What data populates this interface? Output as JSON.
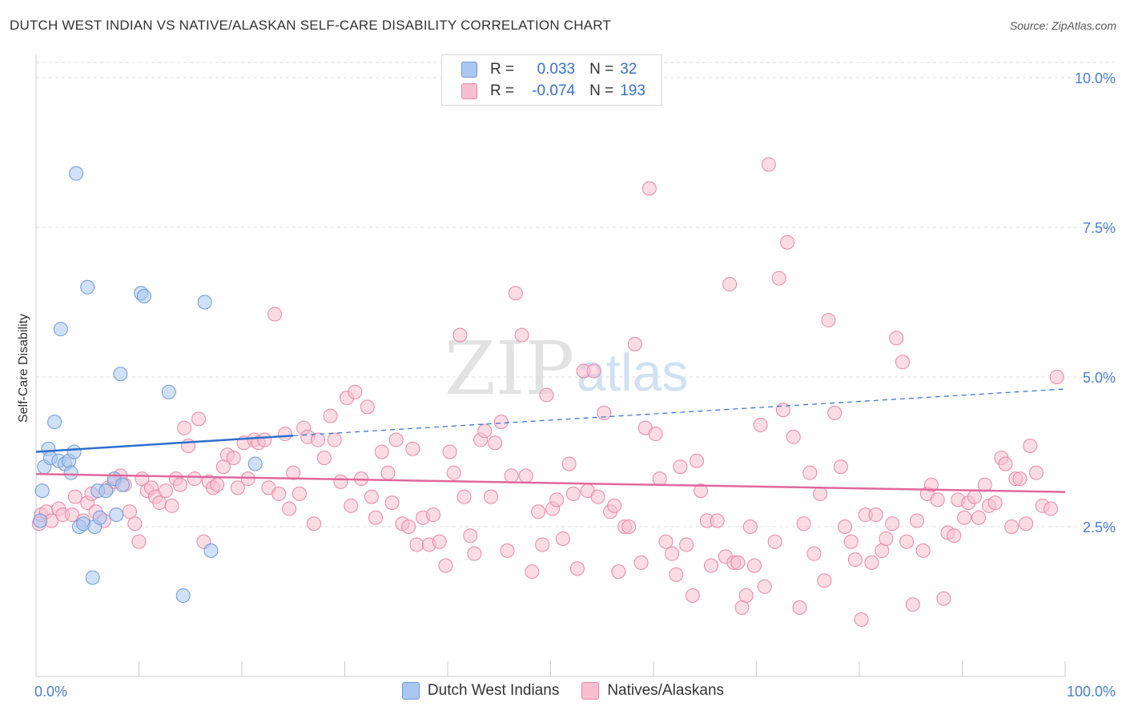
{
  "title": "DUTCH WEST INDIAN VS NATIVE/ALASKAN SELF-CARE DISABILITY CORRELATION CHART",
  "source": "Source: ZipAtlas.com",
  "watermark": {
    "zip": "ZIP",
    "atlas": "atlas"
  },
  "legend_top": [
    {
      "r_label": "R =",
      "r_value": "0.033",
      "n_label": "N =",
      "n_value": "32",
      "color": "#a9c7f0",
      "border": "#6e9ad8"
    },
    {
      "r_label": "R =",
      "r_value": "-0.074",
      "n_label": "N =",
      "n_value": "193",
      "color": "#f7bfd0",
      "border": "#e887a7"
    }
  ],
  "chart_data": {
    "type": "scatter",
    "title": "DUTCH WEST INDIAN VS NATIVE/ALASKAN SELF-CARE DISABILITY CORRELATION CHART",
    "xlabel": "",
    "ylabel": "Self-Care Disability",
    "xlim": [
      0,
      100
    ],
    "ylim": [
      0,
      10.5
    ],
    "x_tick_labels": [
      "0.0%",
      "100.0%"
    ],
    "y_ticks": [
      2.5,
      5.0,
      7.5,
      10.0
    ],
    "y_tick_labels": [
      "2.5%",
      "5.0%",
      "7.5%",
      "10.0%"
    ],
    "grid": true,
    "series": [
      {
        "name": "Dutch West Indians",
        "color": "#a9c7f0",
        "stroke": "#6e9ad8",
        "trend": {
          "x0": 0,
          "y0": 3.75,
          "x1": 25,
          "y1": 4.02,
          "dash_to_x": 100,
          "dash_to_y": 4.8,
          "color": "#2d6fcc"
        },
        "points": [
          [
            0.4,
            2.6
          ],
          [
            0.6,
            3.1
          ],
          [
            0.8,
            3.5
          ],
          [
            1.2,
            3.8
          ],
          [
            1.4,
            3.65
          ],
          [
            1.8,
            4.25
          ],
          [
            2.2,
            3.6
          ],
          [
            2.4,
            5.8
          ],
          [
            2.8,
            3.55
          ],
          [
            3.2,
            3.6
          ],
          [
            3.4,
            3.4
          ],
          [
            3.7,
            3.75
          ],
          [
            3.9,
            8.4
          ],
          [
            4.2,
            2.5
          ],
          [
            4.6,
            2.55
          ],
          [
            5.0,
            6.5
          ],
          [
            5.5,
            1.65
          ],
          [
            5.7,
            2.5
          ],
          [
            6.0,
            3.1
          ],
          [
            6.2,
            2.65
          ],
          [
            6.8,
            3.1
          ],
          [
            7.6,
            3.3
          ],
          [
            7.8,
            2.7
          ],
          [
            8.2,
            5.05
          ],
          [
            8.4,
            3.2
          ],
          [
            10.2,
            6.4
          ],
          [
            10.5,
            6.35
          ],
          [
            12.9,
            4.75
          ],
          [
            14.3,
            1.35
          ],
          [
            16.4,
            6.25
          ],
          [
            17.0,
            2.1
          ],
          [
            21.3,
            3.55
          ]
        ]
      },
      {
        "name": "Natives/Alaskans",
        "color": "#f7bfd0",
        "stroke": "#e887a7",
        "trend": {
          "x0": 0,
          "y0": 3.38,
          "x1": 100,
          "y1": 3.08,
          "color": "#e0689a"
        },
        "points": [
          [
            0.3,
            2.55
          ],
          [
            0.5,
            2.7
          ],
          [
            1.0,
            2.75
          ],
          [
            1.5,
            2.6
          ],
          [
            2.2,
            2.8
          ],
          [
            2.6,
            2.7
          ],
          [
            3.5,
            2.7
          ],
          [
            3.8,
            3.0
          ],
          [
            4.6,
            2.6
          ],
          [
            5.0,
            2.9
          ],
          [
            5.4,
            3.05
          ],
          [
            5.8,
            2.75
          ],
          [
            6.6,
            2.6
          ],
          [
            7.0,
            3.15
          ],
          [
            7.6,
            3.25
          ],
          [
            8.2,
            3.35
          ],
          [
            8.6,
            3.2
          ],
          [
            9.1,
            2.75
          ],
          [
            9.6,
            2.55
          ],
          [
            10.0,
            2.25
          ],
          [
            10.3,
            3.3
          ],
          [
            10.8,
            3.1
          ],
          [
            11.2,
            3.15
          ],
          [
            11.6,
            3.0
          ],
          [
            12.0,
            2.9
          ],
          [
            12.6,
            3.1
          ],
          [
            13.2,
            2.85
          ],
          [
            13.6,
            3.3
          ],
          [
            14.0,
            3.2
          ],
          [
            14.4,
            4.15
          ],
          [
            14.8,
            3.85
          ],
          [
            15.4,
            3.3
          ],
          [
            15.8,
            4.3
          ],
          [
            16.3,
            2.25
          ],
          [
            16.8,
            3.25
          ],
          [
            17.2,
            3.15
          ],
          [
            17.6,
            3.2
          ],
          [
            18.2,
            3.5
          ],
          [
            18.6,
            3.7
          ],
          [
            19.2,
            3.65
          ],
          [
            19.6,
            3.15
          ],
          [
            20.2,
            3.9
          ],
          [
            20.6,
            3.3
          ],
          [
            21.2,
            3.95
          ],
          [
            21.6,
            3.9
          ],
          [
            22.2,
            3.95
          ],
          [
            22.6,
            3.15
          ],
          [
            23.2,
            6.05
          ],
          [
            23.6,
            3.05
          ],
          [
            24.2,
            4.05
          ],
          [
            24.6,
            2.8
          ],
          [
            25.0,
            3.4
          ],
          [
            25.6,
            3.05
          ],
          [
            26.0,
            4.15
          ],
          [
            26.4,
            4.0
          ],
          [
            27.0,
            2.55
          ],
          [
            27.4,
            3.95
          ],
          [
            28.0,
            3.65
          ],
          [
            28.6,
            4.35
          ],
          [
            29.0,
            3.95
          ],
          [
            29.6,
            3.25
          ],
          [
            30.2,
            4.65
          ],
          [
            30.6,
            2.85
          ],
          [
            31.0,
            4.75
          ],
          [
            31.6,
            3.3
          ],
          [
            32.2,
            4.5
          ],
          [
            32.6,
            3.0
          ],
          [
            33.0,
            2.65
          ],
          [
            33.6,
            3.75
          ],
          [
            34.2,
            3.4
          ],
          [
            34.6,
            2.9
          ],
          [
            35.0,
            3.95
          ],
          [
            35.6,
            2.55
          ],
          [
            36.2,
            2.5
          ],
          [
            36.6,
            3.8
          ],
          [
            37.0,
            2.2
          ],
          [
            37.6,
            2.65
          ],
          [
            38.2,
            2.2
          ],
          [
            38.6,
            2.7
          ],
          [
            39.2,
            2.25
          ],
          [
            39.8,
            1.85
          ],
          [
            40.2,
            3.75
          ],
          [
            40.6,
            3.4
          ],
          [
            41.2,
            5.7
          ],
          [
            41.6,
            3.0
          ],
          [
            42.2,
            2.35
          ],
          [
            42.6,
            2.05
          ],
          [
            43.2,
            3.95
          ],
          [
            43.6,
            4.1
          ],
          [
            44.2,
            3.0
          ],
          [
            44.6,
            3.9
          ],
          [
            45.2,
            4.25
          ],
          [
            45.8,
            2.1
          ],
          [
            46.2,
            3.35
          ],
          [
            46.6,
            6.4
          ],
          [
            47.2,
            5.7
          ],
          [
            47.6,
            3.35
          ],
          [
            48.2,
            1.75
          ],
          [
            48.8,
            2.75
          ],
          [
            49.2,
            2.2
          ],
          [
            49.6,
            4.7
          ],
          [
            50.2,
            2.8
          ],
          [
            50.6,
            2.95
          ],
          [
            51.2,
            2.3
          ],
          [
            51.8,
            3.55
          ],
          [
            52.2,
            3.05
          ],
          [
            52.6,
            1.8
          ],
          [
            53.2,
            5.1
          ],
          [
            53.6,
            3.1
          ],
          [
            54.2,
            5.1
          ],
          [
            54.6,
            3.0
          ],
          [
            55.2,
            4.4
          ],
          [
            55.8,
            2.75
          ],
          [
            56.2,
            2.85
          ],
          [
            56.6,
            1.75
          ],
          [
            57.2,
            2.5
          ],
          [
            57.6,
            2.5
          ],
          [
            58.2,
            5.55
          ],
          [
            58.8,
            1.9
          ],
          [
            59.2,
            4.15
          ],
          [
            59.6,
            8.15
          ],
          [
            60.2,
            4.05
          ],
          [
            60.6,
            3.3
          ],
          [
            61.2,
            2.25
          ],
          [
            61.8,
            2.05
          ],
          [
            62.2,
            1.7
          ],
          [
            62.6,
            3.5
          ],
          [
            63.2,
            2.2
          ],
          [
            63.8,
            1.35
          ],
          [
            64.2,
            3.6
          ],
          [
            64.6,
            3.1
          ],
          [
            65.2,
            2.6
          ],
          [
            65.6,
            1.85
          ],
          [
            66.2,
            2.6
          ],
          [
            67.0,
            2.0
          ],
          [
            67.4,
            6.55
          ],
          [
            67.8,
            1.9
          ],
          [
            68.2,
            1.9
          ],
          [
            68.6,
            1.15
          ],
          [
            69.0,
            1.35
          ],
          [
            69.4,
            2.5
          ],
          [
            69.8,
            1.85
          ],
          [
            70.4,
            4.2
          ],
          [
            70.8,
            1.5
          ],
          [
            71.2,
            8.55
          ],
          [
            71.8,
            2.25
          ],
          [
            72.2,
            6.65
          ],
          [
            72.6,
            4.45
          ],
          [
            73.0,
            7.25
          ],
          [
            73.6,
            4.0
          ],
          [
            74.2,
            1.15
          ],
          [
            74.6,
            2.55
          ],
          [
            75.2,
            3.4
          ],
          [
            75.6,
            2.05
          ],
          [
            76.2,
            3.05
          ],
          [
            76.6,
            1.6
          ],
          [
            77.0,
            5.95
          ],
          [
            77.6,
            4.4
          ],
          [
            78.2,
            3.5
          ],
          [
            78.6,
            2.5
          ],
          [
            79.2,
            2.25
          ],
          [
            79.6,
            1.95
          ],
          [
            80.2,
            0.95
          ],
          [
            80.6,
            2.7
          ],
          [
            81.2,
            1.9
          ],
          [
            81.6,
            2.7
          ],
          [
            82.2,
            2.1
          ],
          [
            82.6,
            2.3
          ],
          [
            83.2,
            2.55
          ],
          [
            83.6,
            5.65
          ],
          [
            84.2,
            5.25
          ],
          [
            84.6,
            2.25
          ],
          [
            85.2,
            1.2
          ],
          [
            85.6,
            2.6
          ],
          [
            86.2,
            2.1
          ],
          [
            86.6,
            3.05
          ],
          [
            87.0,
            3.2
          ],
          [
            87.6,
            2.95
          ],
          [
            88.2,
            1.3
          ],
          [
            88.6,
            2.4
          ],
          [
            89.2,
            2.35
          ],
          [
            89.6,
            2.95
          ],
          [
            90.2,
            2.65
          ],
          [
            90.6,
            2.9
          ],
          [
            91.2,
            3.0
          ],
          [
            91.6,
            2.65
          ],
          [
            92.2,
            3.2
          ],
          [
            92.6,
            2.85
          ],
          [
            93.2,
            2.9
          ],
          [
            93.8,
            3.65
          ],
          [
            94.2,
            3.55
          ],
          [
            94.8,
            2.5
          ],
          [
            95.2,
            3.3
          ],
          [
            95.6,
            3.3
          ],
          [
            96.2,
            2.55
          ],
          [
            96.6,
            3.85
          ],
          [
            97.2,
            3.4
          ],
          [
            97.8,
            2.85
          ],
          [
            98.6,
            2.8
          ],
          [
            99.2,
            5.0
          ]
        ]
      }
    ]
  },
  "legend_bottom": [
    {
      "label": "Dutch West Indians",
      "color": "#a9c7f0",
      "border": "#6e9ad8"
    },
    {
      "label": "Natives/Alaskans",
      "color": "#f7bfd0",
      "border": "#e887a7"
    }
  ]
}
